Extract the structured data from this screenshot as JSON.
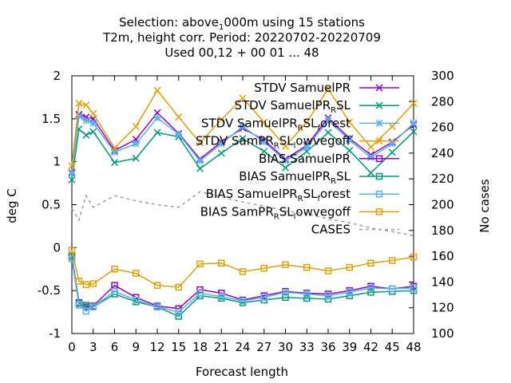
{
  "chart_data": {
    "type": "line",
    "title_lines": [
      {
        "parts": [
          {
            "t": "Selection: above"
          },
          {
            "t": "1",
            "sub": true
          },
          {
            "t": "000m using    15 stations"
          }
        ]
      },
      {
        "parts": [
          {
            "t": "T2m, height corr.   Period: 20220702-20220709"
          }
        ]
      },
      {
        "parts": [
          {
            "t": "Used  00,12  + 00 01 ... 48"
          }
        ]
      }
    ],
    "xlabel": "Forecast length",
    "ylabel": "deg C",
    "y2label": "No cases",
    "xlim": [
      0,
      48
    ],
    "ylim": [
      -1,
      2
    ],
    "y2lim": [
      100,
      300
    ],
    "xticks": [
      "0",
      "3",
      "6",
      "9",
      "12",
      "15",
      "18",
      "21",
      "24",
      "27",
      "30",
      "33",
      "36",
      "39",
      "42",
      "45",
      "48"
    ],
    "yticks": [
      "-1",
      "-0.5",
      "0",
      "0.5",
      "1",
      "1.5",
      "2"
    ],
    "y2ticks": [
      "100",
      "120",
      "140",
      "160",
      "180",
      "200",
      "220",
      "240",
      "260",
      "280",
      "300"
    ],
    "legend_position": "top-right",
    "series": [
      {
        "legend": [
          {
            "t": "STDV SamuelPR"
          }
        ],
        "color": "#9400d3",
        "marker": "x",
        "axis": "y1",
        "x": [
          0,
          1,
          2,
          3,
          6,
          9,
          12,
          15,
          18,
          21,
          24,
          27,
          30,
          33,
          36,
          39,
          42,
          45,
          48
        ],
        "values": [
          0.87,
          1.55,
          1.52,
          1.5,
          1.13,
          1.26,
          1.57,
          1.33,
          1.03,
          1.23,
          1.39,
          1.25,
          1.03,
          1.19,
          1.51,
          1.27,
          1.08,
          1.23,
          1.43
        ]
      },
      {
        "legend": [
          {
            "t": "STDV SamuelPR"
          },
          {
            "t": "R",
            "sub": true
          },
          {
            "t": "SL"
          }
        ],
        "color": "#009e73",
        "marker": "x",
        "axis": "y1",
        "x": [
          0,
          1,
          2,
          3,
          6,
          9,
          12,
          15,
          18,
          21,
          24,
          27,
          30,
          33,
          36,
          39,
          42,
          45,
          48
        ],
        "values": [
          0.79,
          1.38,
          1.31,
          1.35,
          0.99,
          1.04,
          1.34,
          1.29,
          0.92,
          1.1,
          1.27,
          1.12,
          0.93,
          1.12,
          1.34,
          1.13,
          0.87,
          1.11,
          1.35
        ]
      },
      {
        "legend": [
          {
            "t": "STDV SamuelPR"
          },
          {
            "t": "R",
            "sub": true
          },
          {
            "t": "SL"
          },
          {
            "t": "f",
            "sub": true
          },
          {
            "t": "orest"
          }
        ],
        "color": "#56b4e9",
        "marker": "*",
        "axis": "y1",
        "x": [
          0,
          1,
          2,
          3,
          6,
          9,
          12,
          15,
          18,
          21,
          24,
          27,
          30,
          33,
          36,
          39,
          42,
          45,
          48
        ],
        "values": [
          0.86,
          1.53,
          1.48,
          1.45,
          1.11,
          1.21,
          1.51,
          1.32,
          1.01,
          1.21,
          1.41,
          1.23,
          1.01,
          1.17,
          1.48,
          1.25,
          1.05,
          1.21,
          1.45
        ]
      },
      {
        "legend": [
          {
            "t": "STDV SamPR"
          },
          {
            "t": "R",
            "sub": true
          },
          {
            "t": "SL"
          },
          {
            "t": "l",
            "sub": true
          },
          {
            "t": "owvegoff"
          }
        ],
        "color": "#e69f00",
        "marker": "x",
        "axis": "y1",
        "x": [
          0,
          1,
          2,
          3,
          6,
          9,
          12,
          15,
          18,
          21,
          24,
          27,
          30,
          33,
          36,
          39,
          42,
          45,
          48
        ],
        "values": [
          0.95,
          1.68,
          1.66,
          1.56,
          1.16,
          1.41,
          1.83,
          1.52,
          1.22,
          1.49,
          1.74,
          1.46,
          1.18,
          1.46,
          1.85,
          1.46,
          1.17,
          1.41,
          1.68
        ]
      },
      {
        "legend": [
          {
            "t": "BIAS SamuelPR"
          }
        ],
        "color": "#9400d3",
        "marker": "square",
        "axis": "y1",
        "x": [
          0,
          1,
          2,
          3,
          6,
          9,
          12,
          15,
          18,
          21,
          24,
          27,
          30,
          33,
          36,
          39,
          42,
          45,
          48
        ],
        "values": [
          -0.09,
          -0.64,
          -0.69,
          -0.68,
          -0.44,
          -0.58,
          -0.68,
          -0.71,
          -0.49,
          -0.53,
          -0.61,
          -0.56,
          -0.51,
          -0.53,
          -0.54,
          -0.5,
          -0.45,
          -0.48,
          -0.45
        ]
      },
      {
        "legend": [
          {
            "t": "BIAS SamuelPR"
          },
          {
            "t": "R",
            "sub": true
          },
          {
            "t": "SL"
          }
        ],
        "color": "#009e73",
        "marker": "square",
        "axis": "y1",
        "x": [
          0,
          1,
          2,
          3,
          6,
          9,
          12,
          15,
          18,
          21,
          24,
          27,
          30,
          33,
          36,
          39,
          42,
          45,
          48
        ],
        "values": [
          -0.11,
          -0.65,
          -0.67,
          -0.69,
          -0.54,
          -0.63,
          -0.69,
          -0.8,
          -0.56,
          -0.59,
          -0.64,
          -0.61,
          -0.58,
          -0.59,
          -0.6,
          -0.56,
          -0.52,
          -0.51,
          -0.5
        ]
      },
      {
        "legend": [
          {
            "t": "BIAS SamuelPR"
          },
          {
            "t": "R",
            "sub": true
          },
          {
            "t": "SL"
          },
          {
            "t": "f",
            "sub": true
          },
          {
            "t": "orest"
          }
        ],
        "color": "#56b4e9",
        "marker": "square",
        "axis": "y1",
        "x": [
          0,
          1,
          2,
          3,
          6,
          9,
          12,
          15,
          18,
          21,
          24,
          27,
          30,
          33,
          36,
          39,
          42,
          45,
          48
        ],
        "values": [
          -0.13,
          -0.67,
          -0.74,
          -0.69,
          -0.51,
          -0.61,
          -0.69,
          -0.75,
          -0.53,
          -0.57,
          -0.62,
          -0.58,
          -0.52,
          -0.54,
          -0.56,
          -0.52,
          -0.47,
          -0.48,
          -0.47
        ]
      },
      {
        "legend": [
          {
            "t": "BIAS SamPR"
          },
          {
            "t": "R",
            "sub": true
          },
          {
            "t": "SL"
          },
          {
            "t": "l",
            "sub": true
          },
          {
            "t": "owvegoff"
          }
        ],
        "color": "#e69f00",
        "marker": "square",
        "axis": "y1",
        "x": [
          0,
          1,
          2,
          3,
          6,
          9,
          12,
          15,
          18,
          21,
          24,
          27,
          30,
          33,
          36,
          39,
          42,
          45,
          48
        ],
        "values": [
          -0.03,
          -0.39,
          -0.43,
          -0.42,
          -0.25,
          -0.3,
          -0.44,
          -0.46,
          -0.19,
          -0.18,
          -0.28,
          -0.24,
          -0.2,
          -0.23,
          -0.27,
          -0.23,
          -0.18,
          -0.15,
          -0.11
        ]
      },
      {
        "legend": [
          {
            "t": "CASES"
          }
        ],
        "color": "#a0a0a0",
        "marker": "none",
        "dash": true,
        "axis": "y2",
        "x": [
          0,
          1,
          2,
          3,
          6,
          9,
          12,
          15,
          18,
          21,
          24,
          27,
          30,
          33,
          36,
          39,
          42,
          45,
          48
        ],
        "values": [
          197,
          188,
          207,
          198,
          207,
          203,
          200,
          198,
          210,
          206,
          202,
          199,
          195,
          193,
          189,
          186,
          182,
          179,
          176
        ]
      }
    ]
  }
}
